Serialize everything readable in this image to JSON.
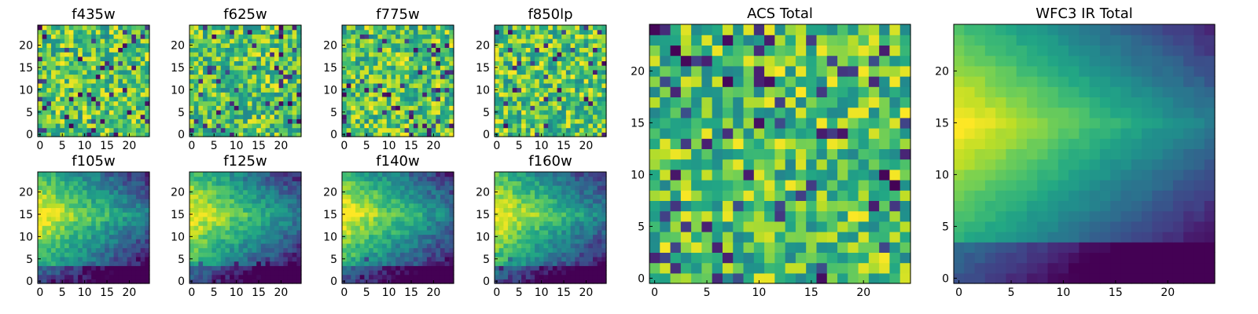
{
  "chart_data": [
    {
      "type": "heatmap",
      "title": "f435w",
      "pattern": "noise",
      "seed": 11,
      "xticks": [
        "0",
        "5",
        "10",
        "15",
        "20"
      ],
      "yticks": [
        "0",
        "5",
        "10",
        "15",
        "20"
      ],
      "xlim": [
        -0.5,
        24.5
      ],
      "ylim": [
        -0.5,
        24.5
      ],
      "grid": false,
      "colormap": "viridis"
    },
    {
      "type": "heatmap",
      "title": "f625w",
      "pattern": "noise",
      "seed": 23,
      "xticks": [
        "0",
        "5",
        "10",
        "15",
        "20"
      ],
      "yticks": [
        "0",
        "5",
        "10",
        "15",
        "20"
      ],
      "xlim": [
        -0.5,
        24.5
      ],
      "ylim": [
        -0.5,
        24.5
      ],
      "grid": false,
      "colormap": "viridis"
    },
    {
      "type": "heatmap",
      "title": "f775w",
      "pattern": "noise",
      "seed": 37,
      "xticks": [
        "0",
        "5",
        "10",
        "15",
        "20"
      ],
      "yticks": [
        "0",
        "5",
        "10",
        "15",
        "20"
      ],
      "xlim": [
        -0.5,
        24.5
      ],
      "ylim": [
        -0.5,
        24.5
      ],
      "grid": false,
      "colormap": "viridis"
    },
    {
      "type": "heatmap",
      "title": "f850lp",
      "pattern": "noise",
      "seed": 41,
      "xticks": [
        "0",
        "5",
        "10",
        "15",
        "20"
      ],
      "yticks": [
        "0",
        "5",
        "10",
        "15",
        "20"
      ],
      "xlim": [
        -0.5,
        24.5
      ],
      "ylim": [
        -0.5,
        24.5
      ],
      "grid": false,
      "colormap": "viridis"
    },
    {
      "type": "heatmap",
      "title": "ACS Total",
      "pattern": "noise",
      "seed": 59,
      "xticks": [
        "0",
        "5",
        "10",
        "15",
        "20"
      ],
      "yticks": [
        "0",
        "5",
        "10",
        "15",
        "20"
      ],
      "xlim": [
        -0.5,
        24.5
      ],
      "ylim": [
        -0.5,
        24.5
      ],
      "grid": false,
      "colormap": "viridis"
    },
    {
      "type": "heatmap",
      "title": "f105w",
      "pattern": "galaxy",
      "seed": 67,
      "xticks": [
        "0",
        "5",
        "10",
        "15",
        "20"
      ],
      "yticks": [
        "0",
        "5",
        "10",
        "15",
        "20"
      ],
      "xlim": [
        -0.5,
        24.5
      ],
      "ylim": [
        -0.5,
        24.5
      ],
      "grid": false,
      "colormap": "viridis"
    },
    {
      "type": "heatmap",
      "title": "f125w",
      "pattern": "galaxy",
      "seed": 71,
      "xticks": [
        "0",
        "5",
        "10",
        "15",
        "20"
      ],
      "yticks": [
        "0",
        "5",
        "10",
        "15",
        "20"
      ],
      "xlim": [
        -0.5,
        24.5
      ],
      "ylim": [
        -0.5,
        24.5
      ],
      "grid": false,
      "colormap": "viridis"
    },
    {
      "type": "heatmap",
      "title": "f140w",
      "pattern": "galaxy",
      "seed": 83,
      "xticks": [
        "0",
        "5",
        "10",
        "15",
        "20"
      ],
      "yticks": [
        "0",
        "5",
        "10",
        "15",
        "20"
      ],
      "xlim": [
        -0.5,
        24.5
      ],
      "ylim": [
        -0.5,
        24.5
      ],
      "grid": false,
      "colormap": "viridis"
    },
    {
      "type": "heatmap",
      "title": "f160w",
      "pattern": "galaxy",
      "seed": 97,
      "xticks": [
        "0",
        "5",
        "10",
        "15",
        "20"
      ],
      "yticks": [
        "0",
        "5",
        "10",
        "15",
        "20"
      ],
      "xlim": [
        -0.5,
        24.5
      ],
      "ylim": [
        -0.5,
        24.5
      ],
      "grid": false,
      "colormap": "viridis"
    },
    {
      "type": "heatmap",
      "title": "WFC3 IR Total",
      "pattern": "galaxy-smooth",
      "seed": 101,
      "xticks": [
        "0",
        "5",
        "10",
        "15",
        "20"
      ],
      "yticks": [
        "0",
        "5",
        "10",
        "15",
        "20"
      ],
      "xlim": [
        -0.5,
        24.5
      ],
      "ylim": [
        -0.5,
        24.5
      ],
      "grid": false,
      "colormap": "viridis"
    }
  ]
}
